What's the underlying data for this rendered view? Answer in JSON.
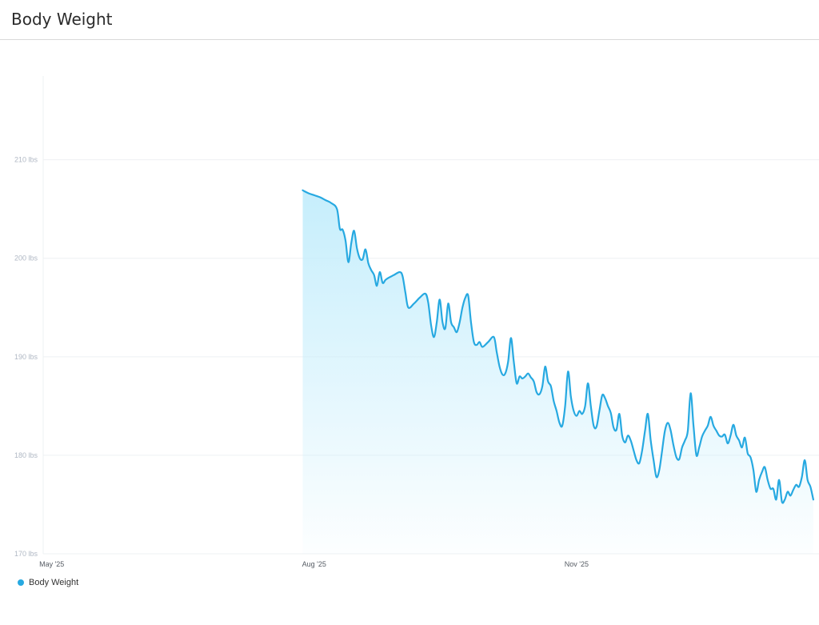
{
  "header": {
    "title": "Body Weight"
  },
  "colors": {
    "series": "#27a9e1",
    "fill_top": "#c6eefc",
    "grid": "#eef0f3"
  },
  "chart_data": {
    "type": "area",
    "title": "Body Weight",
    "xlabel": "",
    "ylabel": "",
    "x_ticks": [
      {
        "label": "May '25",
        "date": "2025-05-01"
      },
      {
        "label": "Aug '25",
        "date": "2025-08-01"
      },
      {
        "label": "Nov '25",
        "date": "2025-11-01"
      }
    ],
    "x_range": [
      "2025-04-28",
      "2026-01-25"
    ],
    "y_ticks": [
      {
        "label": "170 lbs",
        "value": 170
      },
      {
        "label": "180 lbs",
        "value": 180
      },
      {
        "label": "190 lbs",
        "value": 190
      },
      {
        "label": "200 lbs",
        "value": 200
      },
      {
        "label": "210 lbs",
        "value": 210
      }
    ],
    "ylim": [
      170,
      218.5
    ],
    "grid": true,
    "legend": "bottom-left",
    "series": [
      {
        "name": "Body Weight",
        "points": [
          [
            "2025-07-28",
            206.9
          ],
          [
            "2025-07-30",
            206.6
          ],
          [
            "2025-08-01",
            206.4
          ],
          [
            "2025-08-03",
            206.2
          ],
          [
            "2025-08-05",
            205.9
          ],
          [
            "2025-08-07",
            205.6
          ],
          [
            "2025-08-09",
            205.0
          ],
          [
            "2025-08-10",
            203.0
          ],
          [
            "2025-08-11",
            202.9
          ],
          [
            "2025-08-12",
            201.8
          ],
          [
            "2025-08-13",
            199.6
          ],
          [
            "2025-08-14",
            201.5
          ],
          [
            "2025-08-15",
            202.8
          ],
          [
            "2025-08-16",
            201.0
          ],
          [
            "2025-08-17",
            200.0
          ],
          [
            "2025-08-18",
            199.9
          ],
          [
            "2025-08-19",
            200.9
          ],
          [
            "2025-08-20",
            199.5
          ],
          [
            "2025-08-21",
            198.8
          ],
          [
            "2025-08-22",
            198.3
          ],
          [
            "2025-08-23",
            197.2
          ],
          [
            "2025-08-24",
            198.6
          ],
          [
            "2025-08-25",
            197.5
          ],
          [
            "2025-08-26",
            197.8
          ],
          [
            "2025-08-27",
            198.0
          ],
          [
            "2025-08-29",
            198.3
          ],
          [
            "2025-08-31",
            198.6
          ],
          [
            "2025-09-01",
            198.2
          ],
          [
            "2025-09-02",
            196.5
          ],
          [
            "2025-09-03",
            195.0
          ],
          [
            "2025-09-05",
            195.4
          ],
          [
            "2025-09-07",
            196.0
          ],
          [
            "2025-09-09",
            196.4
          ],
          [
            "2025-09-10",
            195.5
          ],
          [
            "2025-09-11",
            193.2
          ],
          [
            "2025-09-12",
            192.0
          ],
          [
            "2025-09-13",
            193.5
          ],
          [
            "2025-09-14",
            195.8
          ],
          [
            "2025-09-15",
            193.5
          ],
          [
            "2025-09-16",
            192.9
          ],
          [
            "2025-09-17",
            195.4
          ],
          [
            "2025-09-18",
            193.5
          ],
          [
            "2025-09-19",
            193.0
          ],
          [
            "2025-09-20",
            192.5
          ],
          [
            "2025-09-21",
            193.5
          ],
          [
            "2025-09-22",
            195.0
          ],
          [
            "2025-09-23",
            196.0
          ],
          [
            "2025-09-24",
            196.2
          ],
          [
            "2025-09-25",
            193.5
          ],
          [
            "2025-09-26",
            191.5
          ],
          [
            "2025-09-27",
            191.2
          ],
          [
            "2025-09-28",
            191.5
          ],
          [
            "2025-09-29",
            191.0
          ],
          [
            "2025-10-01",
            191.5
          ],
          [
            "2025-10-03",
            192.0
          ],
          [
            "2025-10-04",
            190.5
          ],
          [
            "2025-10-05",
            189.0
          ],
          [
            "2025-10-06",
            188.2
          ],
          [
            "2025-10-07",
            188.3
          ],
          [
            "2025-10-08",
            189.5
          ],
          [
            "2025-10-09",
            191.9
          ],
          [
            "2025-10-10",
            189.5
          ],
          [
            "2025-10-11",
            187.3
          ],
          [
            "2025-10-12",
            188.0
          ],
          [
            "2025-10-13",
            187.8
          ],
          [
            "2025-10-14",
            188.0
          ],
          [
            "2025-10-15",
            188.3
          ],
          [
            "2025-10-16",
            187.9
          ],
          [
            "2025-10-17",
            187.5
          ],
          [
            "2025-10-18",
            186.4
          ],
          [
            "2025-10-19",
            186.2
          ],
          [
            "2025-10-20",
            187.0
          ],
          [
            "2025-10-21",
            189.0
          ],
          [
            "2025-10-22",
            187.5
          ],
          [
            "2025-10-23",
            187.0
          ],
          [
            "2025-10-24",
            185.5
          ],
          [
            "2025-10-25",
            184.5
          ],
          [
            "2025-10-26",
            183.3
          ],
          [
            "2025-10-27",
            183.0
          ],
          [
            "2025-10-28",
            185.0
          ],
          [
            "2025-10-29",
            188.5
          ],
          [
            "2025-10-30",
            186.0
          ],
          [
            "2025-10-31",
            184.5
          ],
          [
            "2025-11-01",
            184.0
          ],
          [
            "2025-11-02",
            184.5
          ],
          [
            "2025-11-03",
            184.2
          ],
          [
            "2025-11-04",
            185.0
          ],
          [
            "2025-11-05",
            187.3
          ],
          [
            "2025-11-06",
            185.0
          ],
          [
            "2025-11-07",
            183.0
          ],
          [
            "2025-11-08",
            182.9
          ],
          [
            "2025-11-09",
            184.5
          ],
          [
            "2025-11-10",
            186.1
          ],
          [
            "2025-11-11",
            185.8
          ],
          [
            "2025-11-12",
            185.0
          ],
          [
            "2025-11-13",
            184.3
          ],
          [
            "2025-11-14",
            182.8
          ],
          [
            "2025-11-15",
            182.6
          ],
          [
            "2025-11-16",
            184.2
          ],
          [
            "2025-11-17",
            182.0
          ],
          [
            "2025-11-18",
            181.3
          ],
          [
            "2025-11-19",
            182.0
          ],
          [
            "2025-11-20",
            181.5
          ],
          [
            "2025-11-21",
            180.5
          ],
          [
            "2025-11-22",
            179.5
          ],
          [
            "2025-11-23",
            179.2
          ],
          [
            "2025-11-24",
            180.5
          ],
          [
            "2025-11-25",
            182.5
          ],
          [
            "2025-11-26",
            184.2
          ],
          [
            "2025-11-27",
            181.5
          ],
          [
            "2025-11-28",
            179.5
          ],
          [
            "2025-11-29",
            177.8
          ],
          [
            "2025-11-30",
            178.5
          ],
          [
            "2025-12-01",
            180.5
          ],
          [
            "2025-12-02",
            182.5
          ],
          [
            "2025-12-03",
            183.3
          ],
          [
            "2025-12-04",
            182.5
          ],
          [
            "2025-12-05",
            181.0
          ],
          [
            "2025-12-06",
            179.8
          ],
          [
            "2025-12-07",
            179.6
          ],
          [
            "2025-12-08",
            180.8
          ],
          [
            "2025-12-09",
            181.5
          ],
          [
            "2025-12-10",
            182.5
          ],
          [
            "2025-12-11",
            186.3
          ],
          [
            "2025-12-12",
            183.0
          ],
          [
            "2025-12-13",
            180.0
          ],
          [
            "2025-12-14",
            180.8
          ],
          [
            "2025-12-15",
            181.9
          ],
          [
            "2025-12-16",
            182.5
          ],
          [
            "2025-12-17",
            183.0
          ],
          [
            "2025-12-18",
            183.9
          ],
          [
            "2025-12-19",
            183.0
          ],
          [
            "2025-12-20",
            182.5
          ],
          [
            "2025-12-21",
            182.0
          ],
          [
            "2025-12-22",
            181.9
          ],
          [
            "2025-12-23",
            182.1
          ],
          [
            "2025-12-24",
            181.2
          ],
          [
            "2025-12-25",
            182.0
          ],
          [
            "2025-12-26",
            183.1
          ],
          [
            "2025-12-27",
            182.0
          ],
          [
            "2025-12-28",
            181.5
          ],
          [
            "2025-12-29",
            180.8
          ],
          [
            "2025-12-30",
            181.8
          ],
          [
            "2025-12-31",
            180.2
          ],
          [
            "2026-01-01",
            179.8
          ],
          [
            "2026-01-02",
            178.5
          ],
          [
            "2026-01-03",
            176.3
          ],
          [
            "2026-01-04",
            177.5
          ],
          [
            "2026-01-05",
            178.3
          ],
          [
            "2026-01-06",
            178.8
          ],
          [
            "2026-01-07",
            177.5
          ],
          [
            "2026-01-08",
            176.6
          ],
          [
            "2026-01-09",
            176.6
          ],
          [
            "2026-01-10",
            175.5
          ],
          [
            "2026-01-11",
            177.5
          ],
          [
            "2026-01-12",
            175.3
          ],
          [
            "2026-01-13",
            175.5
          ],
          [
            "2026-01-14",
            176.3
          ],
          [
            "2026-01-15",
            175.9
          ],
          [
            "2026-01-16",
            176.5
          ],
          [
            "2026-01-17",
            177.0
          ],
          [
            "2026-01-18",
            176.8
          ],
          [
            "2026-01-19",
            177.8
          ],
          [
            "2026-01-20",
            179.5
          ],
          [
            "2026-01-21",
            177.5
          ],
          [
            "2026-01-22",
            176.8
          ],
          [
            "2026-01-23",
            175.5
          ]
        ]
      }
    ]
  },
  "legend": {
    "label": "Body Weight"
  }
}
